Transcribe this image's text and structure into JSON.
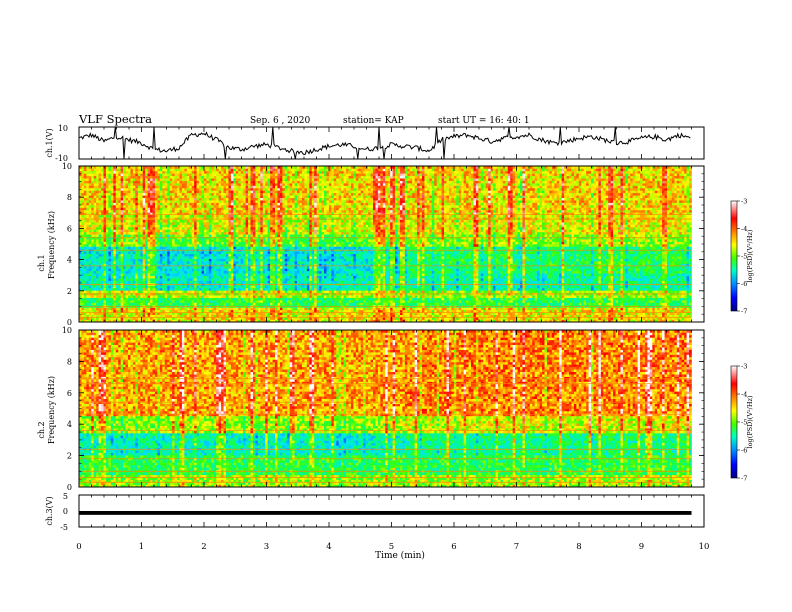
{
  "header": {
    "title": "VLF Spectra",
    "date": "Sep. 6 , 2020",
    "station": "station= KAP",
    "start_time": "start UT = 16: 40: 1"
  },
  "chart_data": [
    {
      "type": "line",
      "panel": "waveform-ch1",
      "ylabel": "ch.1(V)",
      "ylim": [
        -10,
        10
      ],
      "y_ticks": [
        "10",
        "-10"
      ],
      "x_range_min": [
        0,
        9.8
      ],
      "grid": false,
      "series": [
        {
          "x": [
            0,
            0.2,
            0.4,
            0.6,
            0.8,
            1.0,
            1.2,
            1.4,
            1.6,
            1.8,
            2.0,
            2.2,
            2.4,
            2.6,
            2.8,
            3.0,
            3.2,
            3.4,
            3.6,
            3.8,
            4.0,
            4.2,
            4.4,
            4.6,
            4.8,
            5.0,
            5.2,
            5.4,
            5.6,
            5.8,
            6.0,
            6.2,
            6.4,
            6.6,
            6.8,
            7.0,
            7.2,
            7.4,
            7.6,
            7.8,
            8.0,
            8.2,
            8.4,
            8.6,
            8.8,
            9.0,
            9.2,
            9.4,
            9.6,
            9.8
          ],
          "y": [
            3,
            5,
            1,
            4,
            2,
            0,
            -4,
            -5,
            -3,
            5,
            6,
            2,
            -3,
            -4,
            -2,
            -1,
            -3,
            -5,
            -6,
            -4,
            -2,
            -1,
            -2,
            -4,
            -3,
            -1,
            -2,
            -3,
            -5,
            2,
            4,
            5,
            3,
            1,
            3,
            4,
            5,
            2,
            0,
            1,
            3,
            4,
            2,
            0,
            1,
            3,
            4,
            2,
            5,
            3
          ]
        }
      ]
    },
    {
      "type": "heatmap",
      "panel": "spectrogram-ch1",
      "ylabel": "ch.1\nFrequency (kHz)",
      "ylim": [
        0,
        10
      ],
      "y_ticks": [
        "0",
        "2",
        "4",
        "6",
        "8",
        "10"
      ],
      "x_range_min": [
        0,
        9.8
      ],
      "colorbar": {
        "label": "log(PSD)(V²/Hz)",
        "range": [
          -7,
          -3
        ],
        "ticks": [
          "-3",
          "-4",
          "-5",
          "-6",
          "-7"
        ]
      },
      "bands_khz": [
        {
          "from": 0.0,
          "to": 1.0,
          "level": -4.3,
          "after_5_2": -4.3
        },
        {
          "from": 1.0,
          "to": 1.6,
          "level": -5.0,
          "after_5_2": -5.0
        },
        {
          "from": 1.6,
          "to": 2.0,
          "level": -4.5,
          "after_5_2": -4.6
        },
        {
          "from": 2.0,
          "to": 3.2,
          "level": -5.4,
          "after_5_2": -5.3
        },
        {
          "from": 3.2,
          "to": 4.8,
          "level": -5.5,
          "after_5_2": -5.1
        },
        {
          "from": 4.8,
          "to": 5.6,
          "level": -4.8,
          "after_5_2": -4.6
        },
        {
          "from": 5.6,
          "to": 6.8,
          "level": -4.4,
          "after_5_2": -4.3
        },
        {
          "from": 6.8,
          "to": 10.0,
          "level": -4.2,
          "after_5_2": -4.2
        }
      ]
    },
    {
      "type": "heatmap",
      "panel": "spectrogram-ch2",
      "ylabel": "ch.2\nFrequency (kHz)",
      "ylim": [
        0,
        10
      ],
      "y_ticks": [
        "0",
        "2",
        "4",
        "6",
        "8",
        "10"
      ],
      "x_range_min": [
        0,
        9.8
      ],
      "colorbar": {
        "label": "log(PSD)(V²/Hz)",
        "range": [
          -7,
          -3
        ],
        "ticks": [
          "-3",
          "-4",
          "-5",
          "-6",
          "-7"
        ]
      },
      "bands_khz": [
        {
          "from": 0.0,
          "to": 0.8,
          "level": -4.6,
          "after_5_2": -4.6
        },
        {
          "from": 0.8,
          "to": 2.0,
          "level": -5.0,
          "after_5_2": -5.0
        },
        {
          "from": 2.0,
          "to": 3.4,
          "level": -5.4,
          "after_5_2": -5.2
        },
        {
          "from": 3.4,
          "to": 4.6,
          "level": -4.6,
          "after_5_2": -4.4
        },
        {
          "from": 4.6,
          "to": 10.0,
          "level": -4.0,
          "after_5_2": -3.9
        }
      ]
    },
    {
      "type": "line",
      "panel": "waveform-ch3",
      "ylabel": "ch.3(V)",
      "ylim": [
        -5,
        5
      ],
      "y_ticks": [
        "5",
        "0",
        "-5"
      ],
      "x_range_min": [
        0,
        9.8
      ],
      "series": [
        {
          "x": [
            0,
            9.8
          ],
          "y": [
            -0.6,
            -0.6
          ],
          "band": [
            -1.2,
            0
          ]
        }
      ]
    }
  ],
  "x_axis": {
    "label": "Time (min)",
    "ticks": [
      "0",
      "1",
      "2",
      "3",
      "4",
      "5",
      "6",
      "7",
      "8",
      "9",
      "10"
    ],
    "range": [
      0,
      10
    ]
  },
  "colors": {
    "scale": [
      "#000080",
      "#0000ff",
      "#0080ff",
      "#00e0ff",
      "#00ff80",
      "#40ff00",
      "#ffff00",
      "#ff8000",
      "#ff0000",
      "#ffffff"
    ]
  }
}
